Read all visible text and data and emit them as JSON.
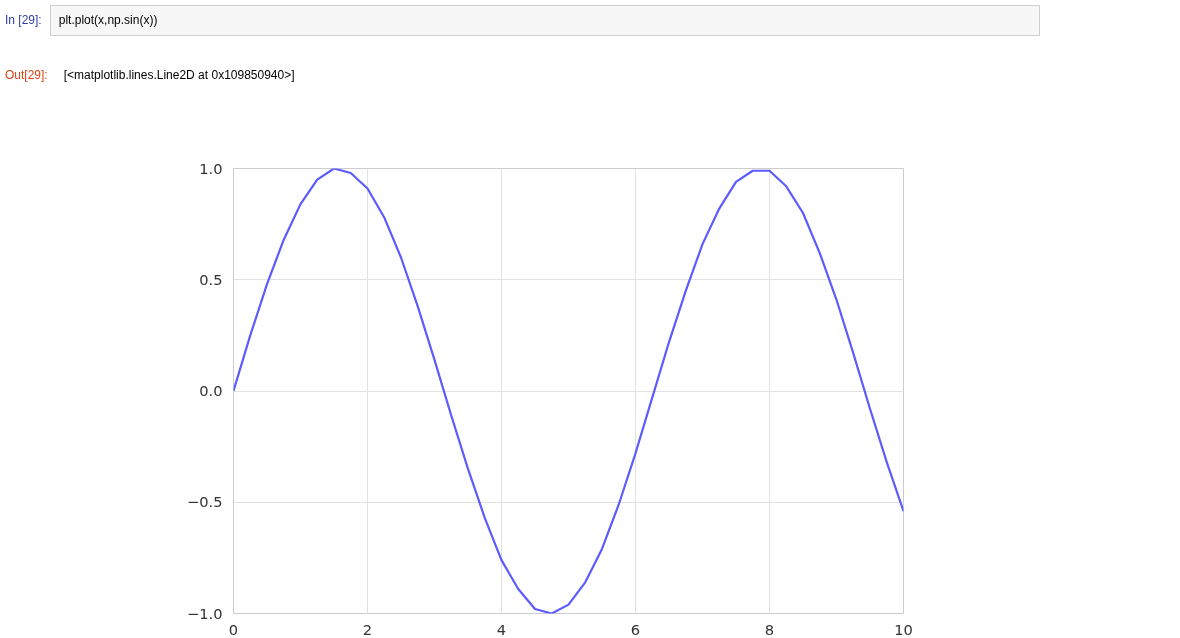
{
  "chart_data": {
    "type": "line",
    "annotations": [
      "In [29]:",
      "plt.plot(x,np.sin(x))",
      "Out[29]:",
      "[<matplotlib.lines.Line2D at 0x109850940>]"
    ],
    "x": [
      0,
      0.25,
      0.5,
      0.75,
      1,
      1.25,
      1.5,
      1.75,
      2,
      2.25,
      2.5,
      2.75,
      3,
      3.25,
      3.5,
      3.75,
      4,
      4.25,
      4.5,
      4.75,
      5,
      5.25,
      5.5,
      5.75,
      6,
      6.25,
      6.5,
      6.75,
      7,
      7.25,
      7.5,
      7.75,
      8,
      8.25,
      8.5,
      8.75,
      9,
      9.25,
      9.5,
      9.75,
      10
    ],
    "series": [
      {
        "color": "#5b5bff",
        "values": [
          0.0,
          0.25,
          0.48,
          0.68,
          0.84,
          0.95,
          1.0,
          0.98,
          0.91,
          0.78,
          0.6,
          0.38,
          0.14,
          -0.11,
          -0.35,
          -0.57,
          -0.76,
          -0.89,
          -0.98,
          -1.0,
          -0.96,
          -0.86,
          -0.71,
          -0.51,
          -0.28,
          -0.03,
          0.22,
          0.45,
          0.66,
          0.82,
          0.94,
          0.99,
          0.99,
          0.92,
          0.8,
          0.62,
          0.41,
          0.17,
          -0.08,
          -0.32,
          -0.54
        ]
      }
    ],
    "xlim": [
      0,
      10
    ],
    "ylim": [
      -1,
      1
    ],
    "xticks": [
      0,
      2,
      4,
      6,
      8,
      10
    ],
    "yticks": [
      {
        "value": -1,
        "label": "−1.0"
      },
      {
        "value": -0.5,
        "label": "−0.5"
      },
      {
        "value": 0,
        "label": "0.0"
      },
      {
        "value": 0.5,
        "label": "0.5"
      },
      {
        "value": 1,
        "label": "1.0"
      }
    ],
    "grid": true,
    "marker": "none",
    "line_style": "solid"
  }
}
